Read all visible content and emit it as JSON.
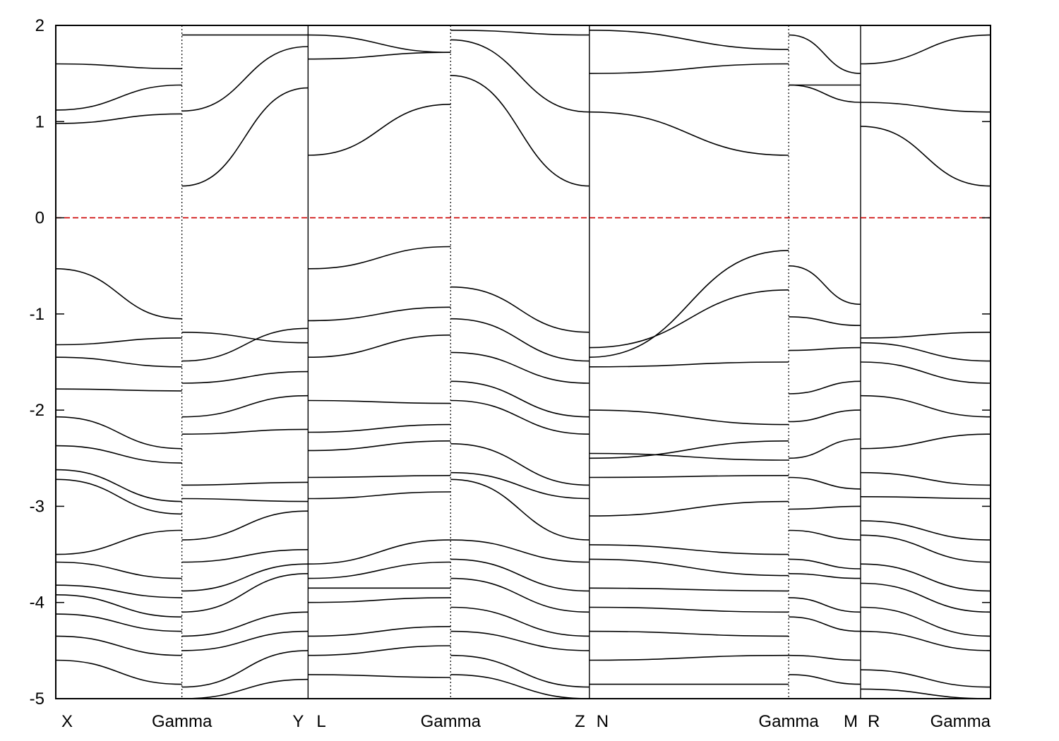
{
  "chart_data": {
    "type": "line",
    "title": "",
    "xlabel": "",
    "ylabel": "",
    "ylim": [
      -5,
      2
    ],
    "y_ticks": [
      2,
      1,
      0,
      -1,
      -2,
      -3,
      -4,
      -5
    ],
    "y_tick_labels": [
      "2",
      "1",
      "0",
      "-1",
      "-2",
      "-3",
      "-4",
      "-5"
    ],
    "fermi_level": 0,
    "fermi_color": "#cc0000",
    "band_color": "#000000",
    "kpath_labels": [
      "X",
      "Gamma",
      "Y",
      "L",
      "Gamma",
      "Z",
      "N",
      "Gamma",
      "M",
      "R",
      "Gamma"
    ],
    "segments": [
      {
        "from": "X",
        "to": "Gamma",
        "length": 1.0
      },
      {
        "from": "Gamma",
        "to": "Y",
        "length": 1.0
      },
      {
        "from": "L",
        "to": "Gamma",
        "length": 1.13
      },
      {
        "from": "Gamma",
        "to": "Z",
        "length": 1.1
      },
      {
        "from": "N",
        "to": "Gamma",
        "length": 1.58
      },
      {
        "from": "Gamma",
        "to": "M",
        "length": 0.57
      },
      {
        "from": "R",
        "to": "Gamma",
        "length": 1.03
      }
    ],
    "path_breaks": [
      "Y|L",
      "Z|N",
      "M|R"
    ],
    "series": [
      {
        "values": [
          1.12,
          1.38,
          1.11,
          1.78,
          1.65,
          1.72,
          1.85,
          1.1,
          1.95,
          1.75,
          1.38,
          1.38,
          1.2,
          1.1,
          1.9,
          1.5,
          1.38,
          1.1
        ]
      },
      {
        "values": [
          0.98,
          1.08,
          0.33,
          1.35,
          0.65,
          1.18,
          1.48,
          0.33,
          1.1,
          0.65,
          1.38,
          1.2,
          0.95,
          0.33,
          1.18,
          0.74,
          0.98,
          0.33
        ]
      },
      {
        "values": [
          1.6,
          1.55,
          1.9,
          1.9,
          1.9,
          1.72,
          1.95,
          1.9,
          1.5,
          1.6,
          1.9,
          1.5,
          1.6,
          1.9,
          1.9,
          1.6,
          1.75,
          1.9
        ]
      },
      {
        "values": [
          -0.53,
          -1.05,
          -1.19,
          -1.3,
          -0.53,
          -0.3,
          -0.72,
          -1.19,
          -1.45,
          -0.34,
          -0.5,
          -0.9,
          -1.25,
          -1.19,
          -1.05,
          -0.52,
          -0.95,
          -1.19
        ]
      },
      {
        "values": [
          -1.32,
          -1.25,
          -1.49,
          -1.15,
          -1.07,
          -0.93,
          -1.05,
          -1.49,
          -1.35,
          -0.75,
          -1.03,
          -1.12,
          -1.3,
          -1.49,
          -1.55,
          -1.1,
          -1.45,
          -1.49
        ]
      },
      {
        "values": [
          -1.45,
          -1.55,
          -1.72,
          -1.6,
          -1.45,
          -1.22,
          -1.4,
          -1.72,
          -1.55,
          -1.5,
          -1.38,
          -1.35,
          -1.5,
          -1.72,
          -1.8,
          -1.4,
          -1.6,
          -1.72
        ]
      },
      {
        "values": [
          -1.78,
          -1.8,
          -2.07,
          -1.85,
          -1.9,
          -1.93,
          -1.7,
          -2.07,
          -2.0,
          -2.15,
          -1.83,
          -1.7,
          -1.85,
          -2.07,
          -2.1,
          -1.8,
          -1.95,
          -2.07
        ]
      },
      {
        "values": [
          -2.07,
          -2.4,
          -2.25,
          -2.2,
          -2.23,
          -2.15,
          -1.9,
          -2.25,
          -2.5,
          -2.32,
          -2.12,
          -2.0,
          -2.4,
          -2.25,
          -2.35,
          -2.1,
          -2.45,
          -2.3
        ]
      },
      {
        "values": [
          -2.37,
          -2.55,
          -2.78,
          -2.75,
          -2.42,
          -2.32,
          -2.35,
          -2.78,
          -2.45,
          -2.52,
          -2.5,
          -2.3,
          -2.65,
          -2.78,
          -2.75,
          -2.3,
          -2.6,
          -2.78
        ]
      },
      {
        "values": [
          -2.62,
          -2.95,
          -2.92,
          -2.95,
          -2.7,
          -2.68,
          -2.65,
          -2.92,
          -2.7,
          -2.68,
          -2.7,
          -2.82,
          -2.9,
          -2.92,
          -2.95,
          -2.7,
          -2.85,
          -2.92
        ]
      },
      {
        "values": [
          -2.72,
          -3.08,
          -3.35,
          -3.05,
          -2.92,
          -2.85,
          -2.72,
          -3.35,
          -3.1,
          -2.95,
          -3.03,
          -3.0,
          -3.15,
          -3.35,
          -3.05,
          -2.98,
          -3.1,
          -3.35
        ]
      },
      {
        "values": [
          -3.5,
          -3.25,
          -3.58,
          -3.45,
          -3.6,
          -3.35,
          -3.35,
          -3.58,
          -3.4,
          -3.5,
          -3.25,
          -3.35,
          -3.3,
          -3.58,
          -3.4,
          -3.5,
          -3.4,
          -3.58
        ]
      },
      {
        "values": [
          -3.58,
          -3.75,
          -3.88,
          -3.6,
          -3.75,
          -3.58,
          -3.55,
          -3.88,
          -3.55,
          -3.72,
          -3.55,
          -3.65,
          -3.6,
          -3.88,
          -3.6,
          -3.75,
          -3.7,
          -3.88
        ]
      },
      {
        "values": [
          -3.82,
          -3.95,
          -4.1,
          -3.7,
          -3.85,
          -3.85,
          -3.75,
          -4.1,
          -3.85,
          -3.88,
          -3.7,
          -3.75,
          -3.8,
          -4.1,
          -3.95,
          -3.85,
          -4.0,
          -4.1
        ]
      },
      {
        "values": [
          -3.92,
          -4.15,
          -4.35,
          -4.1,
          -4.0,
          -3.95,
          -4.05,
          -4.35,
          -4.05,
          -4.1,
          -3.95,
          -4.1,
          -4.05,
          -4.35,
          -4.05,
          -4.15,
          -4.25,
          -4.35
        ]
      },
      {
        "values": [
          -4.12,
          -4.3,
          -4.5,
          -4.3,
          -4.35,
          -4.25,
          -4.3,
          -4.5,
          -4.3,
          -4.35,
          -4.15,
          -4.3,
          -4.3,
          -4.5,
          -4.45,
          -4.2,
          -4.4,
          -4.5
        ]
      },
      {
        "values": [
          -4.35,
          -4.55,
          -4.88,
          -4.5,
          -4.55,
          -4.45,
          -4.55,
          -4.88,
          -4.6,
          -4.55,
          -4.55,
          -4.6,
          -4.7,
          -4.88,
          -4.6,
          -4.55,
          -4.65,
          -4.88
        ]
      },
      {
        "values": [
          -4.6,
          -4.85,
          -5.0,
          -4.8,
          -4.75,
          -4.78,
          -4.75,
          -5.0,
          -4.85,
          -4.85,
          -4.75,
          -4.85,
          -4.9,
          -5.0,
          -4.95,
          -4.75,
          -4.85,
          -5.0
        ]
      }
    ]
  }
}
